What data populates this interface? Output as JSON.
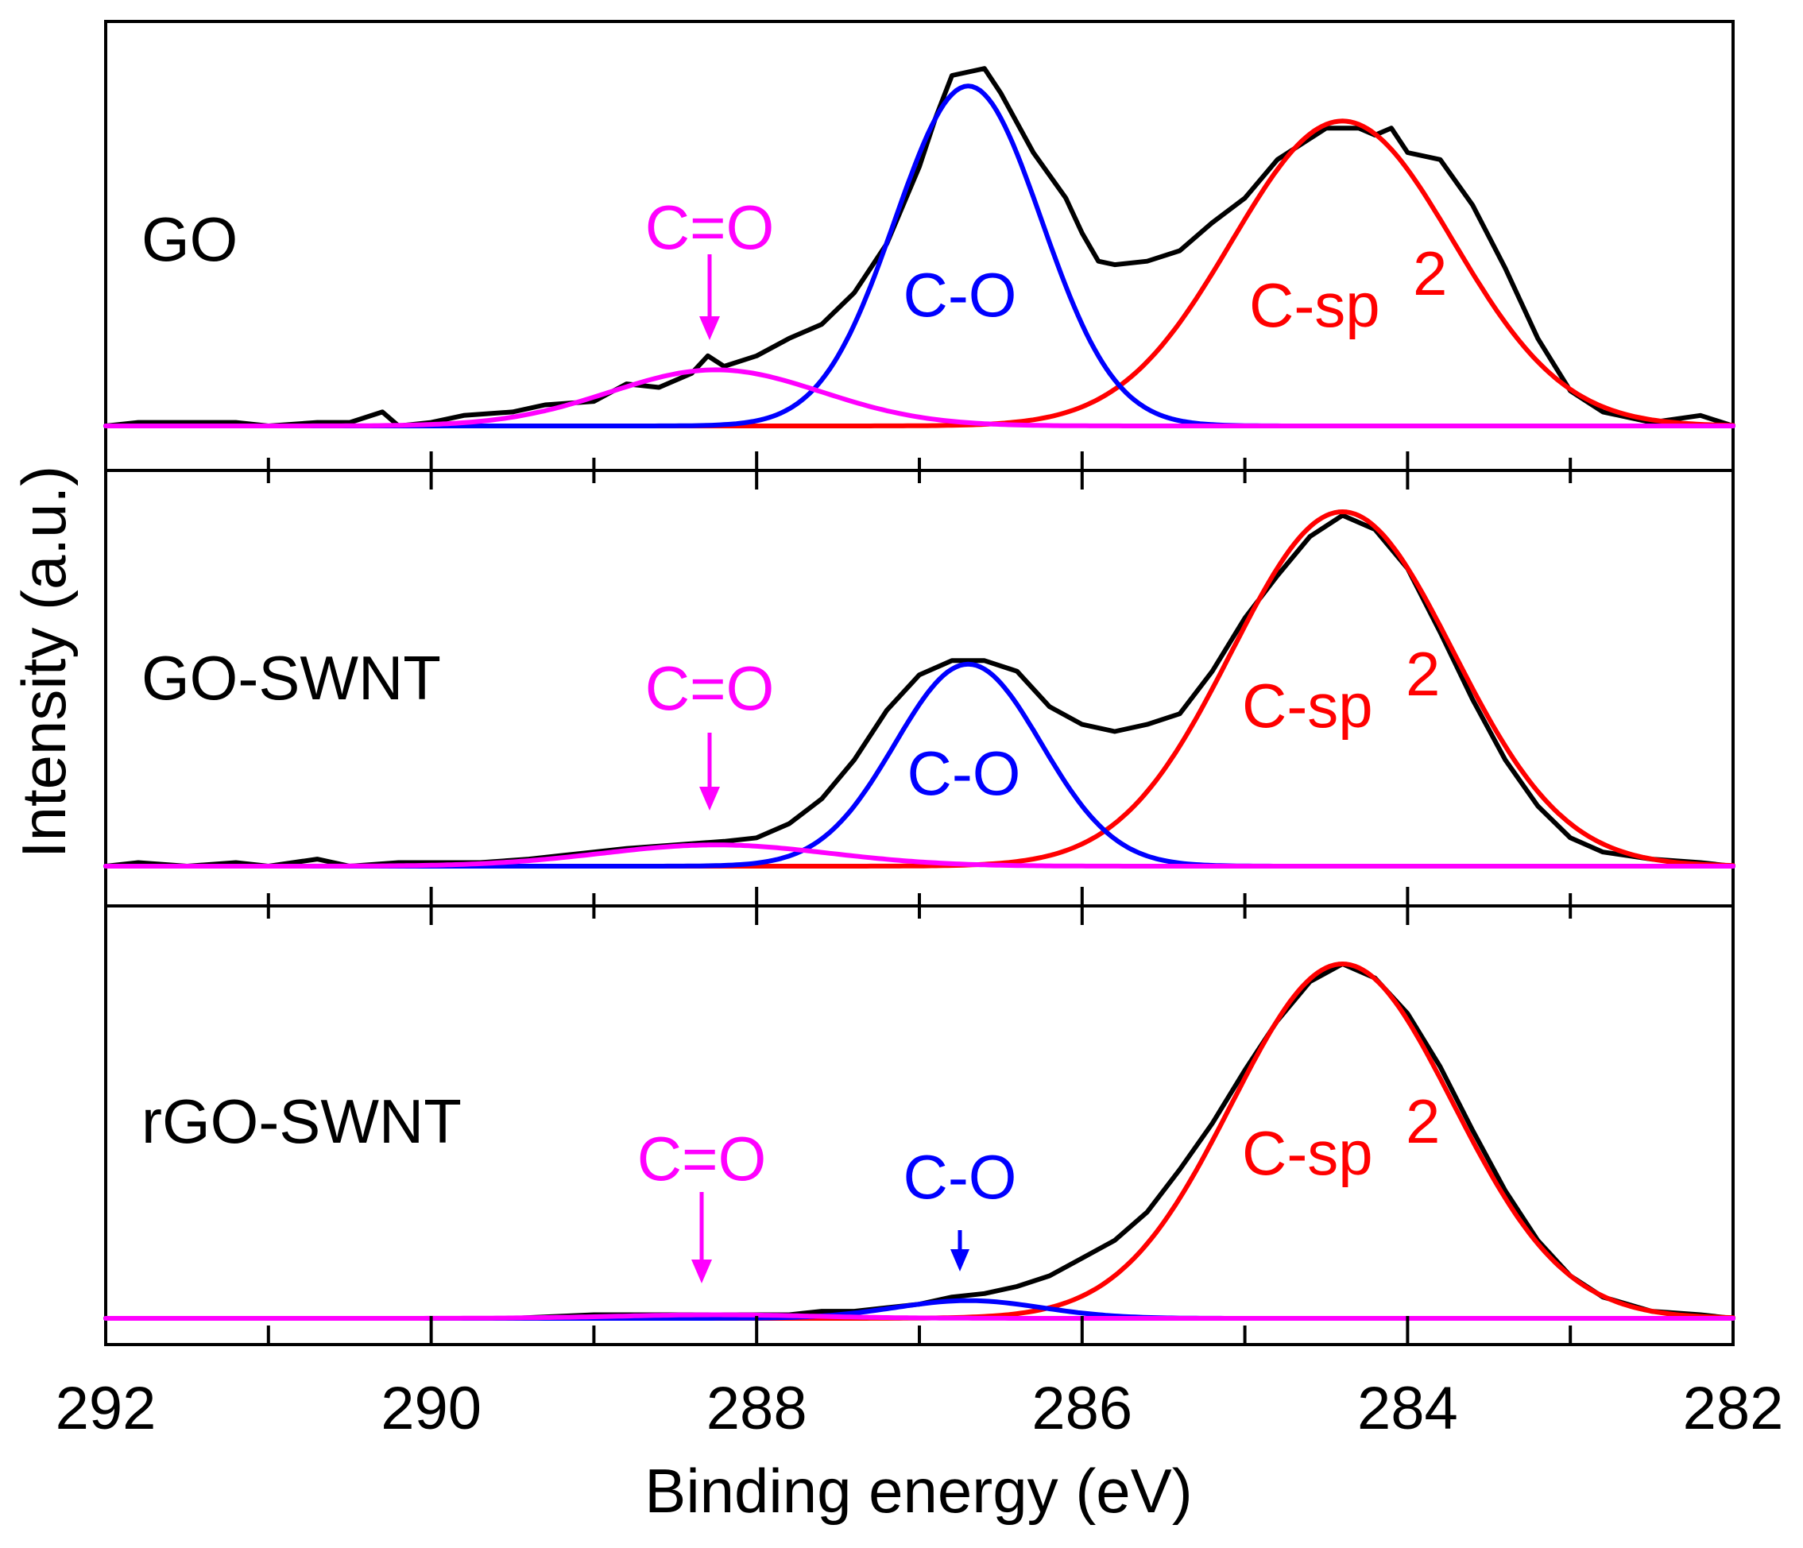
{
  "chart_data": {
    "type": "line",
    "title": "",
    "xlabel": "Binding energy (eV)",
    "ylabel": "Intensity (a.u.)",
    "xlim": [
      292,
      282
    ],
    "x_ticks": [
      292,
      290,
      288,
      286,
      284,
      282
    ],
    "x_tick_labels": [
      "292",
      "290",
      "288",
      "286",
      "284",
      "282"
    ],
    "colors": {
      "data": "#000000",
      "C=O": "#ff00ff",
      "C-O": "#0000ff",
      "C-sp2": "#ff0000"
    },
    "panels": [
      {
        "sample": "GO",
        "peak_labels": {
          "c_eq_o": "C=O",
          "c_o": "C-O",
          "c_sp": "C-sp",
          "c_sp_sup": "2"
        },
        "components": [
          {
            "name": "C=O",
            "center": 288.25,
            "height": 0.16,
            "sigma": 0.65
          },
          {
            "name": "C-O",
            "center": 286.7,
            "height": 0.97,
            "sigma": 0.45
          },
          {
            "name": "C-sp2",
            "center": 284.4,
            "height": 0.87,
            "sigma": 0.68
          }
        ],
        "measured": [
          [
            292.0,
            0.0
          ],
          [
            291.8,
            0.01
          ],
          [
            291.5,
            0.01
          ],
          [
            291.2,
            0.01
          ],
          [
            291.0,
            0.0
          ],
          [
            290.7,
            0.01
          ],
          [
            290.5,
            0.01
          ],
          [
            290.3,
            0.04
          ],
          [
            290.2,
            0.0
          ],
          [
            290.0,
            0.01
          ],
          [
            289.8,
            0.03
          ],
          [
            289.5,
            0.04
          ],
          [
            289.3,
            0.06
          ],
          [
            289.0,
            0.07
          ],
          [
            288.8,
            0.12
          ],
          [
            288.6,
            0.11
          ],
          [
            288.4,
            0.15
          ],
          [
            288.3,
            0.2
          ],
          [
            288.2,
            0.17
          ],
          [
            288.0,
            0.2
          ],
          [
            287.8,
            0.25
          ],
          [
            287.6,
            0.29
          ],
          [
            287.4,
            0.38
          ],
          [
            287.2,
            0.52
          ],
          [
            287.0,
            0.74
          ],
          [
            286.9,
            0.88
          ],
          [
            286.8,
            1.0
          ],
          [
            286.6,
            1.02
          ],
          [
            286.5,
            0.95
          ],
          [
            286.3,
            0.78
          ],
          [
            286.1,
            0.65
          ],
          [
            286.0,
            0.55
          ],
          [
            285.9,
            0.47
          ],
          [
            285.8,
            0.46
          ],
          [
            285.6,
            0.47
          ],
          [
            285.4,
            0.5
          ],
          [
            285.2,
            0.58
          ],
          [
            285.0,
            0.65
          ],
          [
            284.8,
            0.76
          ],
          [
            284.6,
            0.82
          ],
          [
            284.5,
            0.85
          ],
          [
            284.3,
            0.85
          ],
          [
            284.2,
            0.83
          ],
          [
            284.1,
            0.85
          ],
          [
            284.0,
            0.78
          ],
          [
            283.8,
            0.76
          ],
          [
            283.6,
            0.63
          ],
          [
            283.4,
            0.45
          ],
          [
            283.2,
            0.25
          ],
          [
            283.0,
            0.1
          ],
          [
            282.8,
            0.04
          ],
          [
            282.5,
            0.01
          ],
          [
            282.2,
            0.03
          ],
          [
            282.0,
            0.0
          ]
        ]
      },
      {
        "sample": "GO-SWNT",
        "peak_labels": {
          "c_eq_o": "C=O",
          "c_o": "C-O",
          "c_sp": "C-sp",
          "c_sp_sup": "2"
        },
        "components": [
          {
            "name": "C=O",
            "center": 288.25,
            "height": 0.06,
            "sigma": 0.7
          },
          {
            "name": "C-O",
            "center": 286.7,
            "height": 0.57,
            "sigma": 0.45
          },
          {
            "name": "C-sp2",
            "center": 284.4,
            "height": 1.0,
            "sigma": 0.68
          }
        ],
        "measured": [
          [
            292.0,
            0.0
          ],
          [
            291.8,
            0.01
          ],
          [
            291.5,
            0.0
          ],
          [
            291.2,
            0.01
          ],
          [
            291.0,
            0.0
          ],
          [
            290.7,
            0.02
          ],
          [
            290.5,
            0.0
          ],
          [
            290.2,
            0.01
          ],
          [
            290.0,
            0.01
          ],
          [
            289.7,
            0.01
          ],
          [
            289.4,
            0.02
          ],
          [
            289.2,
            0.03
          ],
          [
            289.0,
            0.04
          ],
          [
            288.8,
            0.05
          ],
          [
            288.5,
            0.06
          ],
          [
            288.2,
            0.07
          ],
          [
            288.0,
            0.08
          ],
          [
            287.8,
            0.12
          ],
          [
            287.6,
            0.19
          ],
          [
            287.4,
            0.3
          ],
          [
            287.2,
            0.44
          ],
          [
            287.0,
            0.54
          ],
          [
            286.8,
            0.58
          ],
          [
            286.6,
            0.58
          ],
          [
            286.4,
            0.55
          ],
          [
            286.2,
            0.45
          ],
          [
            286.0,
            0.4
          ],
          [
            285.8,
            0.38
          ],
          [
            285.6,
            0.4
          ],
          [
            285.4,
            0.43
          ],
          [
            285.2,
            0.55
          ],
          [
            285.0,
            0.7
          ],
          [
            284.8,
            0.82
          ],
          [
            284.6,
            0.93
          ],
          [
            284.4,
            0.99
          ],
          [
            284.2,
            0.95
          ],
          [
            284.0,
            0.84
          ],
          [
            283.8,
            0.66
          ],
          [
            283.6,
            0.47
          ],
          [
            283.4,
            0.3
          ],
          [
            283.2,
            0.17
          ],
          [
            283.0,
            0.08
          ],
          [
            282.8,
            0.04
          ],
          [
            282.5,
            0.02
          ],
          [
            282.2,
            0.01
          ],
          [
            282.0,
            0.0
          ]
        ]
      },
      {
        "sample": "rGO-SWNT",
        "peak_labels": {
          "c_eq_o": "C=O",
          "c_o": "C-O",
          "c_sp": "C-sp",
          "c_sp_sup": "2"
        },
        "components": [
          {
            "name": "C=O",
            "center": 288.25,
            "height": 0.01,
            "sigma": 0.6
          },
          {
            "name": "C-O",
            "center": 286.7,
            "height": 0.05,
            "sigma": 0.45
          },
          {
            "name": "C-sp2",
            "center": 284.4,
            "height": 1.0,
            "sigma": 0.68
          }
        ],
        "measured": [
          [
            292.0,
            0.0
          ],
          [
            291.8,
            0.0
          ],
          [
            291.5,
            0.0
          ],
          [
            291.2,
            0.0
          ],
          [
            291.0,
            0.0
          ],
          [
            290.7,
            0.0
          ],
          [
            290.5,
            0.0
          ],
          [
            290.0,
            0.0
          ],
          [
            289.5,
            0.0
          ],
          [
            289.0,
            0.01
          ],
          [
            288.5,
            0.01
          ],
          [
            288.2,
            0.01
          ],
          [
            288.0,
            0.01
          ],
          [
            287.8,
            0.01
          ],
          [
            287.6,
            0.02
          ],
          [
            287.4,
            0.02
          ],
          [
            287.2,
            0.03
          ],
          [
            287.0,
            0.04
          ],
          [
            286.8,
            0.06
          ],
          [
            286.6,
            0.07
          ],
          [
            286.4,
            0.09
          ],
          [
            286.2,
            0.12
          ],
          [
            286.0,
            0.17
          ],
          [
            285.8,
            0.22
          ],
          [
            285.6,
            0.3
          ],
          [
            285.4,
            0.42
          ],
          [
            285.2,
            0.55
          ],
          [
            285.0,
            0.7
          ],
          [
            284.8,
            0.84
          ],
          [
            284.6,
            0.95
          ],
          [
            284.4,
            1.0
          ],
          [
            284.2,
            0.96
          ],
          [
            284.0,
            0.86
          ],
          [
            283.8,
            0.71
          ],
          [
            283.6,
            0.53
          ],
          [
            283.4,
            0.36
          ],
          [
            283.2,
            0.22
          ],
          [
            283.0,
            0.12
          ],
          [
            282.8,
            0.06
          ],
          [
            282.5,
            0.02
          ],
          [
            282.2,
            0.01
          ],
          [
            282.0,
            0.0
          ]
        ]
      }
    ]
  }
}
